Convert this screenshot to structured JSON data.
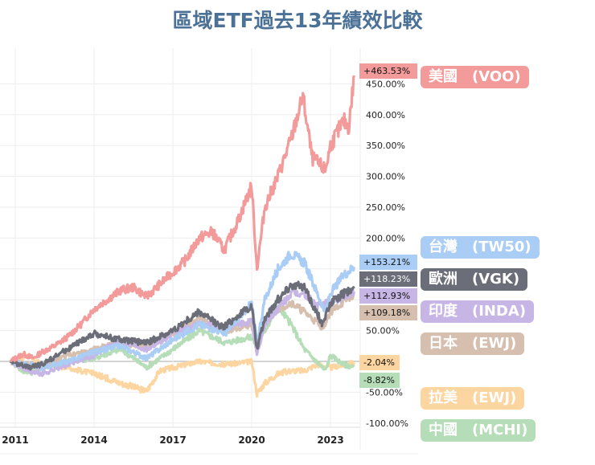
{
  "chart_data": {
    "type": "line",
    "title": "區域ETF過去13年績效比較",
    "xlabel": "",
    "ylabel": "",
    "xlim": [
      2010.4,
      2024.0
    ],
    "ylim": [
      -110,
      480
    ],
    "x_ticks": [
      "2011",
      "2014",
      "2017",
      "2020",
      "2023"
    ],
    "y_ticks": [
      "-100.00%",
      "-50.00%",
      "50.00%",
      "200.00%",
      "250.00%",
      "300.00%",
      "350.00%",
      "400.00%",
      "450.00%"
    ],
    "grid": true,
    "legend_placement": "right",
    "series": [
      {
        "name": "美國　(VOO)",
        "color": "#f39a9a",
        "end_label": "+463.53%",
        "x": [
          2010.8,
          2011.3,
          2011.7,
          2012,
          2012.5,
          2013,
          2013.5,
          2014,
          2014.5,
          2015,
          2015.5,
          2016,
          2016.5,
          2017,
          2017.5,
          2018,
          2018.5,
          2018.95,
          2019.5,
          2020,
          2020.2,
          2020.5,
          2021,
          2021.5,
          2021.95,
          2022.3,
          2022.8,
          2023,
          2023.5,
          2023.7,
          2023.9
        ],
        "y": [
          0,
          12,
          5,
          15,
          25,
          40,
          60,
          85,
          100,
          115,
          120,
          105,
          125,
          145,
          165,
          200,
          210,
          180,
          230,
          285,
          150,
          250,
          300,
          360,
          430,
          330,
          310,
          350,
          390,
          380,
          463.53
        ]
      },
      {
        "name": "台灣　(TW50)",
        "color": "#a9cdf5",
        "end_label": "+153.21%",
        "x": [
          2010.8,
          2011.5,
          2012,
          2013,
          2014,
          2015,
          2016,
          2017,
          2018,
          2019,
          2020,
          2020.2,
          2020.5,
          2021,
          2021.5,
          2022,
          2022.8,
          2023,
          2023.5,
          2023.9
        ],
        "y": [
          0,
          -5,
          -10,
          0,
          15,
          25,
          5,
          35,
          60,
          45,
          95,
          30,
          100,
          150,
          175,
          160,
          80,
          110,
          140,
          153.21
        ]
      },
      {
        "name": "歐洲　(VGK)",
        "color": "#6b6e78",
        "end_label": "+118.23%",
        "x": [
          2010.8,
          2011.5,
          2012,
          2013,
          2014,
          2015,
          2016,
          2017,
          2018,
          2018.9,
          2019.5,
          2020,
          2020.2,
          2020.5,
          2021,
          2021.5,
          2022,
          2022.7,
          2023,
          2023.5,
          2023.9
        ],
        "y": [
          0,
          -10,
          -5,
          20,
          45,
          35,
          30,
          50,
          80,
          55,
          75,
          90,
          20,
          70,
          100,
          125,
          120,
          60,
          95,
          110,
          118.23
        ]
      },
      {
        "name": "印度　(INDA)",
        "color": "#c7b5e6",
        "end_label": "+112.93%",
        "x": [
          2010.8,
          2011.5,
          2012,
          2013,
          2014,
          2015,
          2016,
          2017,
          2018,
          2019,
          2020,
          2020.2,
          2020.5,
          2021,
          2021.5,
          2022,
          2022.5,
          2023,
          2023.9
        ],
        "y": [
          0,
          -15,
          -20,
          -5,
          10,
          35,
          20,
          45,
          60,
          55,
          65,
          10,
          60,
          85,
          110,
          110,
          90,
          95,
          112.93
        ]
      },
      {
        "name": "日本　(EWJ)",
        "color": "#d6bfae",
        "end_label": "+109.18%",
        "x": [
          2010.8,
          2011.5,
          2012,
          2013,
          2014,
          2015,
          2016,
          2017,
          2018,
          2019,
          2020,
          2020.2,
          2020.5,
          2021,
          2021.5,
          2022,
          2022.7,
          2023,
          2023.9
        ],
        "y": [
          0,
          -5,
          -10,
          10,
          20,
          30,
          25,
          45,
          70,
          50,
          60,
          25,
          60,
          85,
          95,
          80,
          55,
          80,
          109.18
        ]
      },
      {
        "name": "拉美　(EWJ)",
        "color": "#fdd5a0",
        "end_label": "-2.04%",
        "x": [
          2010.8,
          2011.5,
          2012,
          2013,
          2014,
          2015,
          2016,
          2016.5,
          2017,
          2018,
          2019,
          2020,
          2020.2,
          2020.5,
          2021,
          2021.5,
          2022,
          2022.5,
          2023,
          2023.9
        ],
        "y": [
          0,
          10,
          -5,
          -10,
          -20,
          -35,
          -48,
          -15,
          -10,
          0,
          -5,
          0,
          -52,
          -35,
          -20,
          -15,
          -15,
          -5,
          -10,
          -2.04
        ]
      },
      {
        "name": "中國　(MCHI)",
        "color": "#b5ddb8",
        "end_label": "-8.82%",
        "x": [
          2010.8,
          2011.5,
          2012,
          2013,
          2014,
          2015,
          2016,
          2017,
          2018,
          2019,
          2020,
          2020.2,
          2020.5,
          2021,
          2021.5,
          2022,
          2022.8,
          2023,
          2023.5,
          2023.9
        ],
        "y": [
          0,
          -20,
          -10,
          0,
          5,
          20,
          -10,
          20,
          50,
          30,
          40,
          20,
          50,
          90,
          60,
          20,
          -15,
          10,
          -5,
          -8.82
        ]
      }
    ]
  }
}
